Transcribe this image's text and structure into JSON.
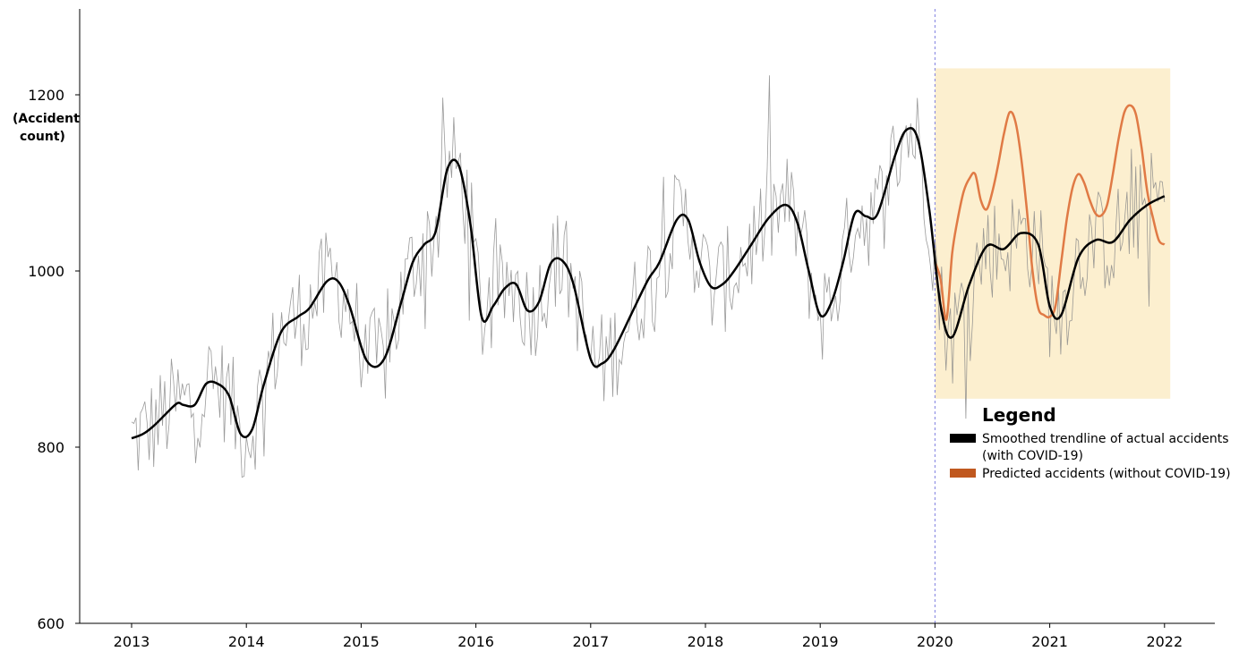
{
  "chart_data": {
    "type": "line",
    "ylabel_line1": "(Accident",
    "ylabel_line2": "count)",
    "ylim": [
      600,
      1300
    ],
    "xlim": [
      2013,
      2022.2
    ],
    "yticks": [
      600,
      800,
      1000,
      1200
    ],
    "xticks": [
      2013,
      2014,
      2015,
      2016,
      2017,
      2018,
      2019,
      2020,
      2021,
      2022
    ],
    "covid_start": 2020,
    "shaded_region": {
      "x": [
        2020,
        2022.05
      ],
      "y": [
        855,
        1230
      ]
    },
    "legend": {
      "title": "Legend",
      "items": [
        {
          "lines": [
            "Smoothed trendline of actual accidents",
            "(with COVID-19)"
          ],
          "color": "#000000"
        },
        {
          "lines": [
            "Predicted accidents (without COVID-19)"
          ],
          "color": "#C0581F"
        }
      ]
    },
    "colors": {
      "smoothed": "#000000",
      "predicted": "#E07A45",
      "raw": "#8A8A8A",
      "shade": "#FCEFCF",
      "covid_line": "#8080E0",
      "legend_predicted_swatch": "#C0581F"
    },
    "series": [
      {
        "key": "smoothed",
        "x": [
          2013.0,
          2013.1,
          2013.2,
          2013.3,
          2013.4,
          2013.45,
          2013.55,
          2013.65,
          2013.75,
          2013.85,
          2013.95,
          2014.05,
          2014.15,
          2014.3,
          2014.45,
          2014.55,
          2014.7,
          2014.8,
          2014.9,
          2015.05,
          2015.2,
          2015.35,
          2015.45,
          2015.55,
          2015.65,
          2015.75,
          2015.85,
          2015.95,
          2016.05,
          2016.15,
          2016.25,
          2016.35,
          2016.45,
          2016.55,
          2016.65,
          2016.75,
          2016.85,
          2017.0,
          2017.1,
          2017.2,
          2017.35,
          2017.5,
          2017.6,
          2017.75,
          2017.85,
          2017.95,
          2018.05,
          2018.15,
          2018.25,
          2018.4,
          2018.55,
          2018.7,
          2018.8,
          2018.9,
          2019.0,
          2019.1,
          2019.2,
          2019.3,
          2019.4,
          2019.5,
          2019.65,
          2019.75,
          2019.85,
          2019.95,
          2020.05,
          2020.15,
          2020.3,
          2020.45,
          2020.6,
          2020.75,
          2020.9,
          2021.0,
          2021.1,
          2021.25,
          2021.4,
          2021.55,
          2021.7,
          2021.85,
          2022.0
        ],
        "y": [
          810,
          815,
          825,
          838,
          850,
          848,
          848,
          872,
          872,
          858,
          815,
          820,
          870,
          930,
          948,
          958,
          988,
          988,
          960,
          898,
          900,
          965,
          1010,
          1030,
          1045,
          1115,
          1120,
          1055,
          948,
          960,
          980,
          985,
          955,
          965,
          1008,
          1012,
          985,
          900,
          895,
          910,
          950,
          990,
          1010,
          1058,
          1058,
          1010,
          982,
          985,
          1000,
          1030,
          1060,
          1075,
          1055,
          1000,
          950,
          965,
          1010,
          1065,
          1062,
          1065,
          1130,
          1160,
          1150,
          1070,
          960,
          925,
          985,
          1028,
          1025,
          1043,
          1030,
          960,
          950,
          1015,
          1035,
          1033,
          1058,
          1075,
          1085
        ]
      },
      {
        "key": "predicted",
        "x": [
          2020.0,
          2020.05,
          2020.1,
          2020.15,
          2020.2,
          2020.25,
          2020.3,
          2020.35,
          2020.4,
          2020.45,
          2020.5,
          2020.55,
          2020.6,
          2020.65,
          2020.7,
          2020.75,
          2020.8,
          2020.85,
          2020.9,
          2020.95,
          2021.0,
          2021.05,
          2021.1,
          2021.15,
          2021.2,
          2021.25,
          2021.3,
          2021.35,
          2021.4,
          2021.45,
          2021.5,
          2021.55,
          2021.6,
          2021.65,
          2021.7,
          2021.75,
          2021.8,
          2021.85,
          2021.9,
          2021.95,
          2022.0
        ],
        "y": [
          1010,
          990,
          945,
          1020,
          1060,
          1090,
          1105,
          1110,
          1080,
          1070,
          1090,
          1120,
          1155,
          1180,
          1170,
          1130,
          1070,
          1000,
          958,
          950,
          948,
          960,
          1010,
          1060,
          1095,
          1110,
          1100,
          1080,
          1065,
          1063,
          1075,
          1110,
          1150,
          1180,
          1188,
          1178,
          1140,
          1090,
          1060,
          1035,
          1030
        ]
      }
    ]
  }
}
